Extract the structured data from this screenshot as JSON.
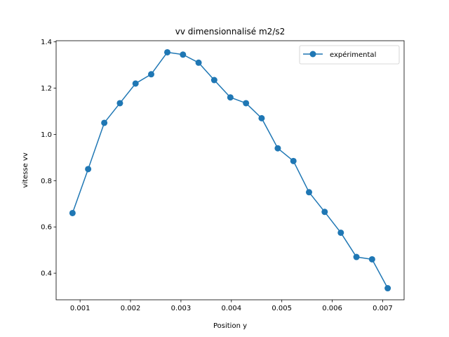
{
  "chart_data": {
    "type": "line",
    "title": "vv dimensionnalisé m2/s2",
    "xlabel": "Position y",
    "ylabel": "vitesse vv",
    "xlim": [
      0.000525,
      0.007425
    ],
    "ylim": [
      0.285,
      1.405
    ],
    "xticks": [
      0.001,
      0.002,
      0.003,
      0.004,
      0.005,
      0.006,
      0.007
    ],
    "xtick_labels": [
      "0.001",
      "0.002",
      "0.003",
      "0.004",
      "0.005",
      "0.006",
      "0.007"
    ],
    "yticks": [
      0.4,
      0.6,
      0.8,
      1.0,
      1.2,
      1.4
    ],
    "ytick_labels": [
      "0.4",
      "0.6",
      "0.8",
      "1.0",
      "1.2",
      "1.4"
    ],
    "grid": false,
    "legend_position": "top-right",
    "series": [
      {
        "name": "expérimental",
        "color": "#1f77b4",
        "marker": "circle",
        "x": [
          0.00085,
          0.00116,
          0.00148,
          0.00179,
          0.0021,
          0.00241,
          0.00273,
          0.00304,
          0.00335,
          0.00366,
          0.00398,
          0.00429,
          0.0046,
          0.00492,
          0.00523,
          0.00554,
          0.00585,
          0.00617,
          0.00648,
          0.00679,
          0.0071
        ],
        "y": [
          0.66,
          0.85,
          1.05,
          1.135,
          1.22,
          1.26,
          1.355,
          1.345,
          1.31,
          1.235,
          1.16,
          1.135,
          1.07,
          0.94,
          0.885,
          0.75,
          0.665,
          0.575,
          0.47,
          0.46,
          0.335
        ]
      }
    ]
  }
}
